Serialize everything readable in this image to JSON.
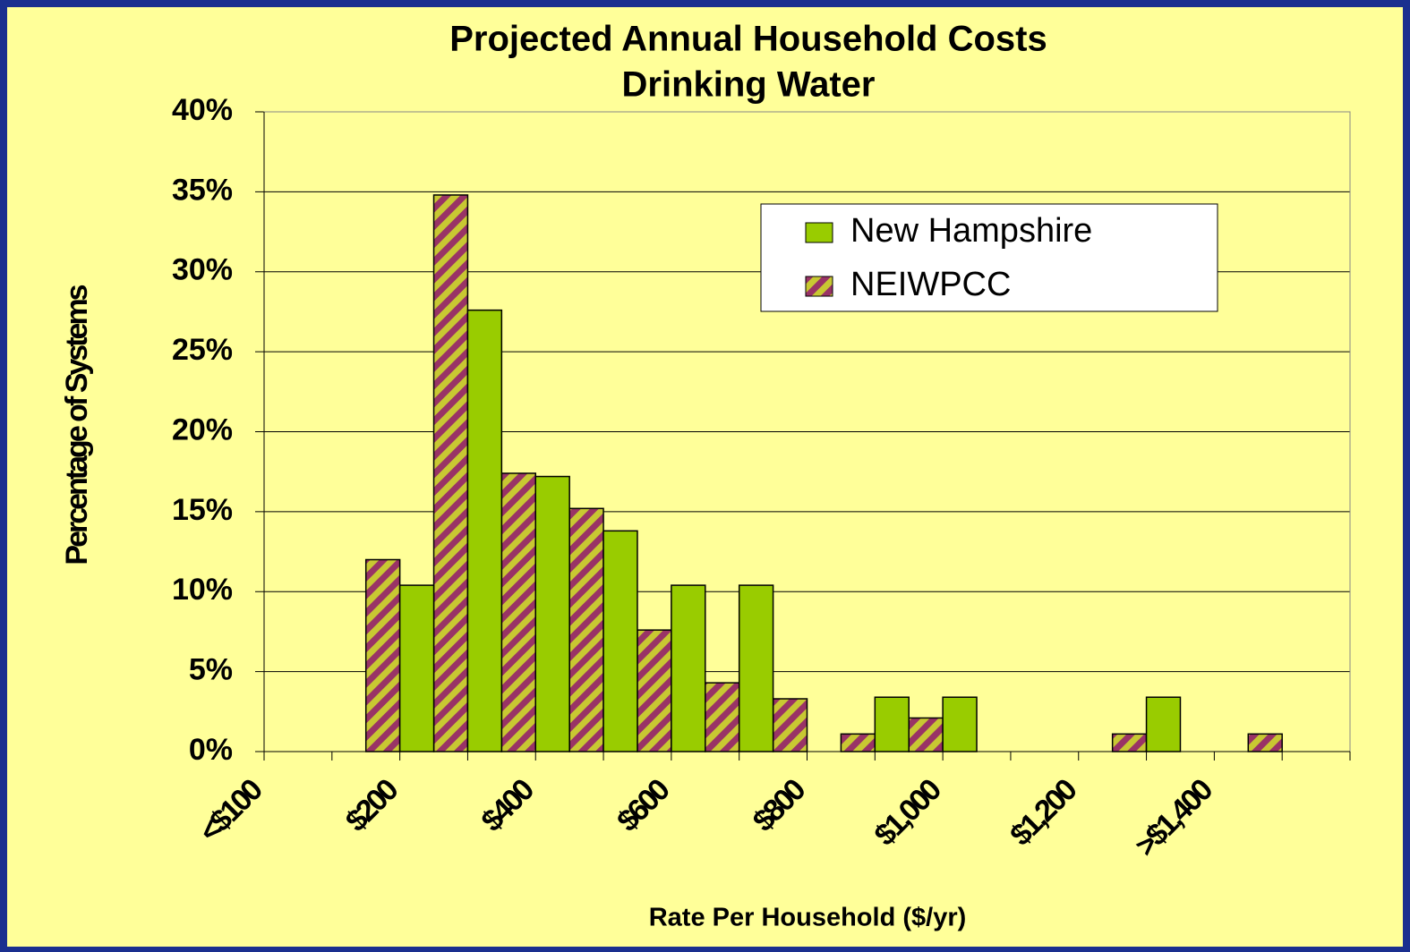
{
  "chart_data": {
    "type": "bar",
    "title": "Projected Annual Household Costs",
    "subtitle": "Drinking Water",
    "x_label": "Rate Per Household ($/yr)",
    "y_label": "Percentage of Systems",
    "categories": [
      "<$100",
      null,
      "$200",
      null,
      "$400",
      null,
      "$600",
      null,
      "$800",
      null,
      "$1,000",
      null,
      "$1,200",
      null,
      ">$1,400",
      null
    ],
    "series": [
      {
        "name": "NEIWPCC",
        "color": "#993366",
        "pattern": "hatched",
        "values": [
          0,
          0,
          12,
          34.8,
          17.4,
          15.2,
          7.6,
          4.3,
          3.3,
          1.1,
          2.1,
          0,
          0,
          1.1,
          0,
          1.1
        ]
      },
      {
        "name": "New Hampshire",
        "color": "#99cc00",
        "values": [
          0,
          0,
          10.4,
          27.6,
          17.2,
          13.8,
          10.4,
          10.4,
          0,
          3.4,
          3.4,
          0,
          0,
          3.4,
          0,
          0
        ]
      }
    ],
    "ylim": [
      0,
      40
    ],
    "yticks": [
      {
        "value": 0,
        "label": "0%"
      },
      {
        "value": 5,
        "label": "5%"
      },
      {
        "value": 10,
        "label": "10%"
      },
      {
        "value": 15,
        "label": "15%"
      },
      {
        "value": 20,
        "label": "20%"
      },
      {
        "value": 25,
        "label": "25%"
      },
      {
        "value": 30,
        "label": "30%"
      },
      {
        "value": 35,
        "label": "35%"
      },
      {
        "value": 40,
        "label": "40%"
      }
    ],
    "grid": true,
    "legend": "upper right"
  }
}
